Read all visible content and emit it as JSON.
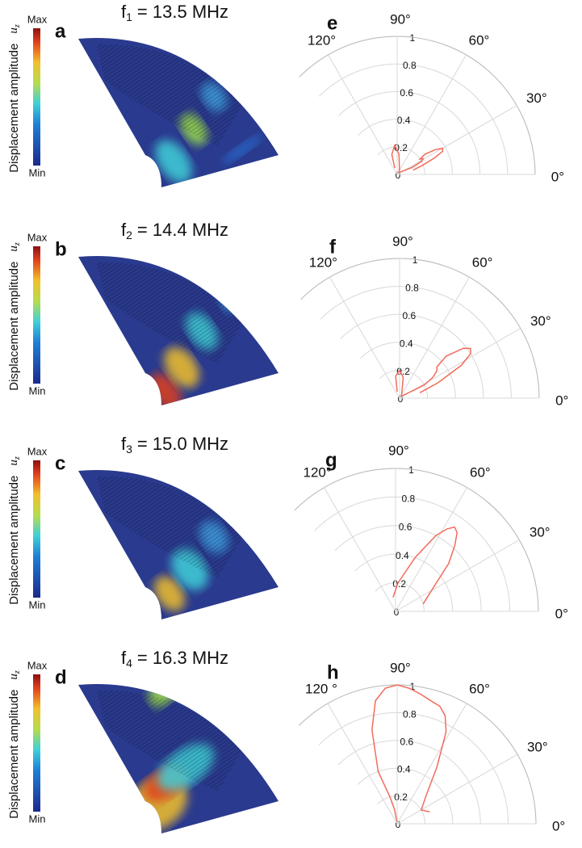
{
  "heatmaps": [
    {
      "label": "a",
      "symbol": "f",
      "index": "1",
      "text": "= 13.5 MHz",
      "colorbar_label": "Displacement amplitude",
      "colorbar_var": "u",
      "colorbar_sub": "z",
      "max": "Max",
      "min": "Min"
    },
    {
      "label": "b",
      "symbol": "f",
      "index": "2",
      "text": "= 14.4 MHz",
      "colorbar_label": "Displacement amplitude",
      "colorbar_var": "u",
      "colorbar_sub": "z",
      "max": "Max",
      "min": "Min"
    },
    {
      "label": "c",
      "symbol": "f",
      "index": "3",
      "text": "= 15.0 MHz",
      "colorbar_label": "Displacement amplitude",
      "colorbar_var": "u",
      "colorbar_sub": "z",
      "max": "Max",
      "min": "Min"
    },
    {
      "label": "d",
      "symbol": "f",
      "index": "4",
      "text": "= 16.3 MHz",
      "colorbar_label": "Displacement amplitude",
      "colorbar_var": "u",
      "colorbar_sub": "z",
      "max": "Max",
      "min": "Min"
    }
  ],
  "chart_data": [
    {
      "type": "polar",
      "label": "e",
      "color": "#f26b5b",
      "rlim": [
        0,
        1
      ],
      "rticks": [
        0,
        0.2,
        0.4,
        0.6,
        0.8,
        1
      ],
      "thetalim": [
        0,
        135
      ],
      "thetaticks": [
        {
          "value": 0,
          "label": "0°"
        },
        {
          "value": 30,
          "label": "30°"
        },
        {
          "value": 60,
          "label": "60°"
        },
        {
          "value": 90,
          "label": "90°"
        },
        {
          "value": 120,
          "label": "120°"
        }
      ],
      "theta": [
        15,
        20,
        24,
        27,
        30,
        33,
        36,
        34,
        31,
        28,
        25,
        45,
        70,
        85,
        95,
        105,
        110
      ],
      "r": [
        0.12,
        0.2,
        0.3,
        0.37,
        0.38,
        0.33,
        0.25,
        0.2,
        0.22,
        0.2,
        0.12,
        0.02,
        0.05,
        0.15,
        0.21,
        0.15,
        0.05
      ]
    },
    {
      "type": "polar",
      "label": "f",
      "color": "#f26b5b",
      "rlim": [
        0,
        1
      ],
      "rticks": [
        0,
        0.2,
        0.4,
        0.6,
        0.8,
        1
      ],
      "thetalim": [
        0,
        135
      ],
      "thetaticks": [
        {
          "value": 0,
          "label": "0°"
        },
        {
          "value": 30,
          "label": "30°"
        },
        {
          "value": 60,
          "label": "60°"
        },
        {
          "value": 90,
          "label": "90°"
        },
        {
          "value": 120,
          "label": "120°"
        }
      ],
      "theta": [
        15,
        22,
        28,
        32,
        35,
        38,
        42,
        40,
        36,
        32,
        28,
        45,
        80,
        90,
        100,
        110
      ],
      "r": [
        0.15,
        0.3,
        0.5,
        0.6,
        0.62,
        0.58,
        0.45,
        0.35,
        0.33,
        0.28,
        0.2,
        0.02,
        0.15,
        0.2,
        0.16,
        0.05
      ]
    },
    {
      "type": "polar",
      "label": "g",
      "color": "#f26b5b",
      "rlim": [
        0,
        1
      ],
      "rticks": [
        0,
        0.2,
        0.4,
        0.6,
        0.8,
        1
      ],
      "thetalim": [
        0,
        135
      ],
      "thetaticks": [
        {
          "value": 0,
          "label": "0°"
        },
        {
          "value": 30,
          "label": "30°"
        },
        {
          "value": 60,
          "label": "60°"
        },
        {
          "value": 90,
          "label": "90°"
        },
        {
          "value": 120,
          "label": "120°"
        }
      ],
      "theta": [
        15,
        25,
        35,
        42,
        48,
        52,
        55,
        58,
        62,
        70,
        85,
        100
      ],
      "r": [
        0.2,
        0.25,
        0.35,
        0.5,
        0.62,
        0.7,
        0.72,
        0.68,
        0.6,
        0.4,
        0.2,
        0.1
      ]
    },
    {
      "type": "polar",
      "label": "h",
      "color": "#f26b5b",
      "rlim": [
        0,
        1
      ],
      "rticks": [
        0,
        0.2,
        0.4,
        0.6,
        0.8,
        1
      ],
      "thetalim": [
        0,
        135
      ],
      "thetaticks": [
        {
          "value": 0,
          "label": "0°"
        },
        {
          "value": 30,
          "label": "30°"
        },
        {
          "value": 60,
          "label": "60°"
        },
        {
          "value": 90,
          "label": "90°"
        },
        {
          "value": 120,
          "label": "120 °"
        }
      ],
      "theta": [
        20,
        30,
        45,
        55,
        62,
        66,
        70,
        75,
        80,
        85,
        90,
        95,
        100,
        105,
        110,
        105,
        100,
        98
      ],
      "r": [
        0.25,
        0.2,
        0.3,
        0.5,
        0.75,
        0.85,
        0.9,
        0.92,
        0.95,
        0.98,
        1,
        0.98,
        0.9,
        0.7,
        0.4,
        0.2,
        0.1,
        0.02
      ]
    }
  ]
}
